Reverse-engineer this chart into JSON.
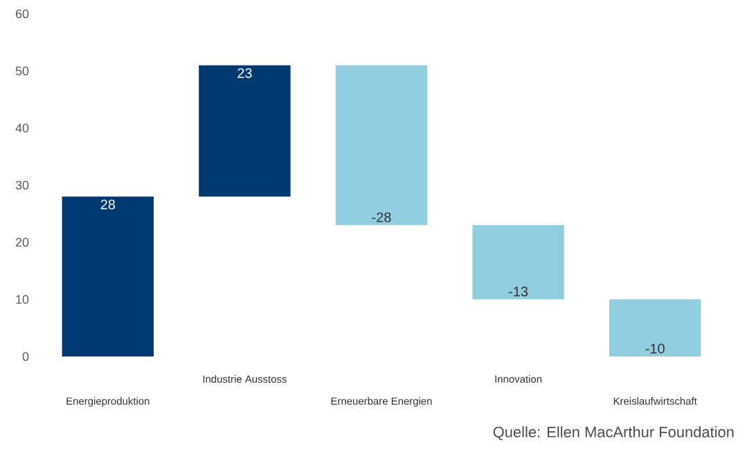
{
  "chart_data": {
    "type": "bar",
    "categories": [
      "Energieproduktion",
      "Industrie Ausstoss",
      "Erneuerbare Energien",
      "Innovation",
      "Kreislaufwirtschaft"
    ],
    "values": [
      28,
      23,
      -28,
      -13,
      -10
    ],
    "base": [
      0,
      28,
      51,
      23,
      10
    ],
    "colors": [
      "#003a70",
      "#003a70",
      "#92cddf",
      "#92cddf",
      "#92cddf"
    ],
    "ylim": [
      0,
      60
    ],
    "yticks": [
      0,
      10,
      20,
      30,
      40,
      50,
      60
    ],
    "grid": false,
    "data_labels": true,
    "annotations": [
      "Quelle: Ellen MacArthur Foundation"
    ]
  }
}
